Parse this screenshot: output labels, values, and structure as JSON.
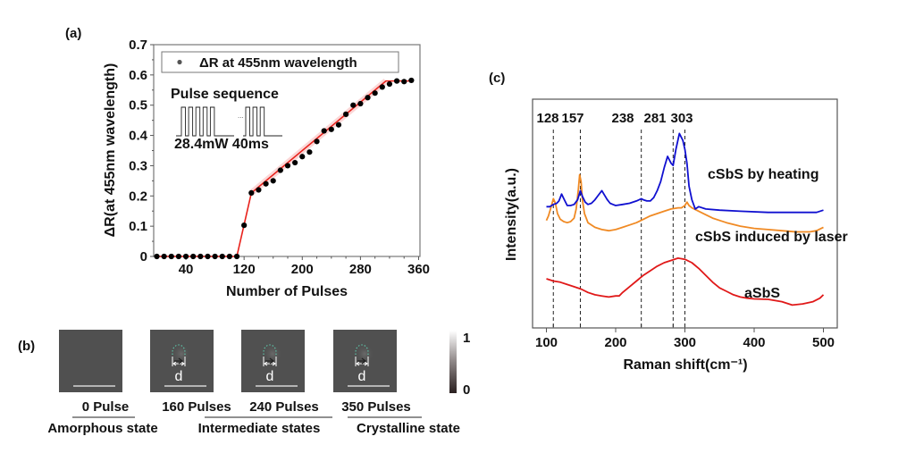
{
  "chart_data": [
    {
      "panel": "(a)",
      "type": "scatter",
      "title": "",
      "xlabel": "Number of Pulses",
      "ylabel": "ΔR(at 455nm wavelength)",
      "xlim": [
        0,
        360
      ],
      "ylim": [
        0,
        0.7
      ],
      "xticks": [
        40,
        120,
        200,
        280,
        360
      ],
      "yticks": [
        0,
        0.1,
        0.2,
        0.3,
        0.4,
        0.5,
        0.6,
        0.7
      ],
      "ytick_labels": [
        "0",
        "0.1",
        "0.2",
        "0.3",
        "0.4",
        "0.5",
        "0.6",
        "0.7"
      ],
      "legend": {
        "label": "ΔR at 455nm wavelength",
        "position": "top"
      },
      "inset": {
        "title": "Pulse sequence",
        "caption": "28.4mW 40ms",
        "ellipsis": "..."
      },
      "series": [
        {
          "name": "ΔR at 455nm wavelength",
          "color": "#000000",
          "x": [
            0,
            10,
            20,
            30,
            40,
            50,
            60,
            70,
            80,
            90,
            100,
            110,
            120,
            130,
            140,
            150,
            160,
            170,
            180,
            190,
            200,
            210,
            220,
            230,
            240,
            250,
            260,
            270,
            280,
            290,
            300,
            310,
            320,
            330,
            340,
            350
          ],
          "y": [
            0,
            0,
            0,
            0,
            0,
            0,
            0,
            0,
            0,
            0,
            0,
            0,
            0.103,
            0.21,
            0.22,
            0.24,
            0.25,
            0.285,
            0.3,
            0.31,
            0.33,
            0.345,
            0.38,
            0.415,
            0.42,
            0.435,
            0.47,
            0.5,
            0.505,
            0.525,
            0.54,
            0.56,
            0.57,
            0.58,
            0.578,
            0.582
          ]
        },
        {
          "name": "fit",
          "type": "line",
          "color": "#e8211b",
          "x": [
            0,
            110,
            130,
            315,
            350
          ],
          "y": [
            0,
            0,
            0.21,
            0.58,
            0.58
          ]
        }
      ]
    },
    {
      "panel": "(b)",
      "type": "image-sequence",
      "frames": [
        {
          "label": "0 Pulse",
          "has_spot": false
        },
        {
          "label": "160 Pulses",
          "has_spot": true,
          "marker": "d"
        },
        {
          "label": "240 Pulses",
          "has_spot": true,
          "marker": "d"
        },
        {
          "label": "350 Pulses",
          "has_spot": true,
          "marker": "d"
        }
      ],
      "groups": [
        "Amorphous state",
        "Intermediate states",
        "Crystalline state"
      ],
      "colorbar": {
        "min": "0",
        "max": "1"
      }
    },
    {
      "panel": "(c)",
      "type": "line",
      "xlabel": "Raman shift(cm⁻¹)",
      "ylabel": "Intensity(a.u.)",
      "xlim": [
        80,
        520
      ],
      "xticks": [
        100,
        200,
        300,
        400,
        500
      ],
      "peak_labels": [
        "128",
        "157",
        "238",
        "281",
        "303"
      ],
      "peak_line_positions": [
        110,
        149,
        237,
        283,
        300
      ],
      "series": [
        {
          "name": "cSbS by heating",
          "color": "#1010d0",
          "x": [
            100,
            105,
            110,
            115,
            118,
            122,
            126,
            130,
            135,
            140,
            145,
            149,
            152,
            156,
            160,
            165,
            170,
            175,
            180,
            185,
            188,
            192,
            196,
            200,
            210,
            220,
            230,
            237,
            240,
            245,
            250,
            255,
            260,
            265,
            270,
            275,
            280,
            283,
            287,
            292,
            297,
            300,
            303,
            306,
            310,
            315,
            320,
            330,
            350,
            380,
            420,
            460,
            490,
            500
          ],
          "y": [
            0.53,
            0.53,
            0.54,
            0.545,
            0.555,
            0.585,
            0.56,
            0.535,
            0.535,
            0.54,
            0.56,
            0.6,
            0.575,
            0.55,
            0.54,
            0.545,
            0.56,
            0.58,
            0.6,
            0.575,
            0.56,
            0.545,
            0.54,
            0.535,
            0.54,
            0.545,
            0.555,
            0.565,
            0.56,
            0.555,
            0.555,
            0.57,
            0.6,
            0.64,
            0.7,
            0.75,
            0.72,
            0.71,
            0.78,
            0.85,
            0.82,
            0.78,
            0.72,
            0.62,
            0.56,
            0.52,
            0.53,
            0.52,
            0.515,
            0.51,
            0.505,
            0.505,
            0.505,
            0.515
          ]
        },
        {
          "name": "cSbS induced by laser",
          "color": "#f08a24",
          "x": [
            100,
            103,
            106,
            110,
            113,
            116,
            120,
            125,
            130,
            135,
            140,
            143,
            146,
            148,
            150,
            152,
            155,
            160,
            170,
            180,
            190,
            200,
            210,
            220,
            230,
            240,
            250,
            260,
            270,
            280,
            290,
            295,
            300,
            303,
            306,
            310,
            320,
            330,
            340,
            350,
            360,
            380,
            400,
            420,
            440,
            460,
            480,
            490,
            500
          ],
          "y": [
            0.47,
            0.49,
            0.52,
            0.565,
            0.545,
            0.5,
            0.475,
            0.465,
            0.46,
            0.465,
            0.48,
            0.52,
            0.6,
            0.67,
            0.64,
            0.56,
            0.5,
            0.46,
            0.44,
            0.43,
            0.425,
            0.43,
            0.44,
            0.45,
            0.46,
            0.475,
            0.49,
            0.5,
            0.51,
            0.52,
            0.525,
            0.525,
            0.535,
            0.55,
            0.535,
            0.525,
            0.51,
            0.495,
            0.48,
            0.47,
            0.46,
            0.445,
            0.435,
            0.43,
            0.425,
            0.42,
            0.42,
            0.425,
            0.44
          ]
        },
        {
          "name": "aSbS",
          "color": "#e01818",
          "x": [
            100,
            110,
            120,
            130,
            140,
            150,
            160,
            170,
            180,
            190,
            200,
            205,
            210,
            220,
            230,
            240,
            250,
            260,
            270,
            280,
            290,
            300,
            310,
            320,
            330,
            340,
            350,
            360,
            370,
            380,
            390,
            400,
            420,
            440,
            455,
            470,
            485,
            495,
            500
          ],
          "y": [
            0.215,
            0.205,
            0.2,
            0.19,
            0.18,
            0.17,
            0.155,
            0.145,
            0.14,
            0.135,
            0.14,
            0.14,
            0.155,
            0.18,
            0.205,
            0.23,
            0.25,
            0.27,
            0.285,
            0.295,
            0.305,
            0.3,
            0.285,
            0.26,
            0.23,
            0.2,
            0.175,
            0.16,
            0.145,
            0.135,
            0.13,
            0.127,
            0.125,
            0.115,
            0.1,
            0.105,
            0.115,
            0.13,
            0.145
          ]
        }
      ]
    }
  ],
  "panel_labels": {
    "a": "(a)",
    "b": "(b)",
    "c": "(c)"
  }
}
